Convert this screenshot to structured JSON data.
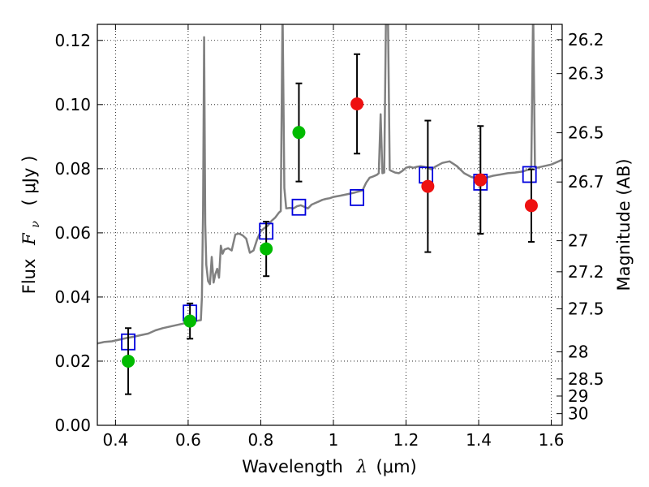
{
  "chart_data": {
    "type": "scatter",
    "xlabel": "Wavelength  λ (μm)",
    "xlabel_main": "Wavelength",
    "xlabel_symbol": "λ",
    "xlabel_unit": "(μm)",
    "ylabel_main": "Flux",
    "ylabel_symbol": "F",
    "ylabel_subscript": "ν",
    "ylabel_unit": "( μJy )",
    "y2label": "Magnitude (AB)",
    "xlim": [
      0.35,
      1.63
    ],
    "ylim": [
      0.0,
      0.125
    ],
    "grid": true,
    "x_ticks": [
      {
        "value": 0.4,
        "label": "0.4"
      },
      {
        "value": 0.6,
        "label": "0.6"
      },
      {
        "value": 0.8,
        "label": "0.8"
      },
      {
        "value": 1.0,
        "label": "1"
      },
      {
        "value": 1.2,
        "label": "1.2"
      },
      {
        "value": 1.4,
        "label": "1.4"
      },
      {
        "value": 1.6,
        "label": "1.6"
      }
    ],
    "y_ticks": [
      {
        "value": 0.0,
        "label": "0.00"
      },
      {
        "value": 0.02,
        "label": "0.02"
      },
      {
        "value": 0.04,
        "label": "0.04"
      },
      {
        "value": 0.06,
        "label": "0.06"
      },
      {
        "value": 0.08,
        "label": "0.08"
      },
      {
        "value": 0.1,
        "label": "0.10"
      },
      {
        "value": 0.12,
        "label": "0.12"
      }
    ],
    "mag_ticks": [
      {
        "value": 26.2,
        "label": "26.2"
      },
      {
        "value": 26.3,
        "label": "26.3"
      },
      {
        "value": 26.5,
        "label": "26.5"
      },
      {
        "value": 26.7,
        "label": "26.7"
      },
      {
        "value": 27.0,
        "label": "27"
      },
      {
        "value": 27.2,
        "label": "27.2"
      },
      {
        "value": 27.5,
        "label": "27.5"
      },
      {
        "value": 28.0,
        "label": "28"
      },
      {
        "value": 28.5,
        "label": "28.5"
      },
      {
        "value": 29.0,
        "label": "29"
      },
      {
        "value": 30.0,
        "label": "30"
      }
    ],
    "mag_zero_point": 23.9,
    "series": [
      {
        "name": "model-spectrum",
        "kind": "line",
        "color": "#808080",
        "points": [
          [
            0.35,
            0.0255
          ],
          [
            0.37,
            0.026
          ],
          [
            0.39,
            0.0262
          ],
          [
            0.41,
            0.0267
          ],
          [
            0.43,
            0.0272
          ],
          [
            0.45,
            0.0276
          ],
          [
            0.47,
            0.0281
          ],
          [
            0.49,
            0.0286
          ],
          [
            0.51,
            0.0296
          ],
          [
            0.53,
            0.0303
          ],
          [
            0.55,
            0.0308
          ],
          [
            0.57,
            0.0313
          ],
          [
            0.59,
            0.0318
          ],
          [
            0.61,
            0.0322
          ],
          [
            0.625,
            0.0326
          ],
          [
            0.635,
            0.0328
          ],
          [
            0.638,
            0.04
          ],
          [
            0.641,
            0.067
          ],
          [
            0.644,
            0.121
          ],
          [
            0.647,
            0.0628
          ],
          [
            0.65,
            0.05
          ],
          [
            0.655,
            0.045
          ],
          [
            0.66,
            0.044
          ],
          [
            0.665,
            0.0525
          ],
          [
            0.67,
            0.0445
          ],
          [
            0.675,
            0.0472
          ],
          [
            0.68,
            0.0488
          ],
          [
            0.685,
            0.046
          ],
          [
            0.69,
            0.056
          ],
          [
            0.695,
            0.0535
          ],
          [
            0.7,
            0.0548
          ],
          [
            0.71,
            0.0552
          ],
          [
            0.72,
            0.0545
          ],
          [
            0.73,
            0.0595
          ],
          [
            0.74,
            0.0598
          ],
          [
            0.75,
            0.0592
          ],
          [
            0.76,
            0.0582
          ],
          [
            0.77,
            0.0538
          ],
          [
            0.78,
            0.0545
          ],
          [
            0.79,
            0.058
          ],
          [
            0.8,
            0.0605
          ],
          [
            0.81,
            0.0615
          ],
          [
            0.82,
            0.0623
          ],
          [
            0.83,
            0.0638
          ],
          [
            0.84,
            0.0648
          ],
          [
            0.85,
            0.0663
          ],
          [
            0.855,
            0.0668
          ],
          [
            0.86,
            0.13
          ],
          [
            0.865,
            0.074
          ],
          [
            0.87,
            0.0676
          ],
          [
            0.88,
            0.0678
          ],
          [
            0.89,
            0.0676
          ],
          [
            0.9,
            0.0683
          ],
          [
            0.91,
            0.0686
          ],
          [
            0.92,
            0.0681
          ],
          [
            0.93,
            0.0676
          ],
          [
            0.94,
            0.0688
          ],
          [
            0.95,
            0.0693
          ],
          [
            0.96,
            0.0698
          ],
          [
            0.97,
            0.0703
          ],
          [
            0.98,
            0.0706
          ],
          [
            0.99,
            0.0708
          ],
          [
            1.0,
            0.0712
          ],
          [
            1.02,
            0.0716
          ],
          [
            1.04,
            0.0721
          ],
          [
            1.06,
            0.0726
          ],
          [
            1.08,
            0.0732
          ],
          [
            1.09,
            0.0756
          ],
          [
            1.1,
            0.0772
          ],
          [
            1.11,
            0.0776
          ],
          [
            1.12,
            0.0781
          ],
          [
            1.125,
            0.0786
          ],
          [
            1.13,
            0.097
          ],
          [
            1.135,
            0.0786
          ],
          [
            1.14,
            0.0788
          ],
          [
            1.145,
            0.13
          ],
          [
            1.15,
            0.13
          ],
          [
            1.155,
            0.0796
          ],
          [
            1.16,
            0.0793
          ],
          [
            1.17,
            0.0788
          ],
          [
            1.18,
            0.0786
          ],
          [
            1.19,
            0.0793
          ],
          [
            1.2,
            0.0803
          ],
          [
            1.21,
            0.0806
          ],
          [
            1.22,
            0.0803
          ],
          [
            1.23,
            0.0806
          ],
          [
            1.24,
            0.0808
          ],
          [
            1.25,
            0.0806
          ],
          [
            1.26,
            0.0803
          ],
          [
            1.27,
            0.0798
          ],
          [
            1.28,
            0.0806
          ],
          [
            1.3,
            0.0818
          ],
          [
            1.32,
            0.0823
          ],
          [
            1.34,
            0.0808
          ],
          [
            1.36,
            0.0786
          ],
          [
            1.38,
            0.0774
          ],
          [
            1.4,
            0.0769
          ],
          [
            1.42,
            0.0772
          ],
          [
            1.44,
            0.0778
          ],
          [
            1.46,
            0.0782
          ],
          [
            1.48,
            0.0786
          ],
          [
            1.5,
            0.0788
          ],
          [
            1.52,
            0.0791
          ],
          [
            1.54,
            0.0798
          ],
          [
            1.545,
            0.0806
          ],
          [
            1.55,
            0.13
          ],
          [
            1.555,
            0.0806
          ],
          [
            1.56,
            0.0803
          ],
          [
            1.58,
            0.0808
          ],
          [
            1.6,
            0.0813
          ],
          [
            1.62,
            0.0823
          ],
          [
            1.63,
            0.0828
          ]
        ]
      },
      {
        "name": "model-synthetic-photometry",
        "kind": "open-square",
        "color": "#0000dd",
        "points": [
          [
            0.435,
            0.026
          ],
          [
            0.605,
            0.035
          ],
          [
            0.815,
            0.0605
          ],
          [
            0.905,
            0.068
          ],
          [
            1.065,
            0.071
          ],
          [
            1.255,
            0.078
          ],
          [
            1.405,
            0.0758
          ],
          [
            1.54,
            0.0782
          ]
        ]
      },
      {
        "name": "observed-optical",
        "kind": "filled-circle",
        "color": "#00bb00",
        "points": [
          {
            "x": 0.435,
            "y": 0.02,
            "err_low": 0.0103,
            "err_high": 0.0103
          },
          {
            "x": 0.605,
            "y": 0.0325,
            "err_low": 0.0055,
            "err_high": 0.0055
          },
          {
            "x": 0.815,
            "y": 0.055,
            "err_low": 0.0085,
            "err_high": 0.0085
          },
          {
            "x": 0.905,
            "y": 0.0913,
            "err_low": 0.0153,
            "err_high": 0.0153
          }
        ]
      },
      {
        "name": "observed-infrared",
        "kind": "filled-circle",
        "color": "#ee1111",
        "points": [
          {
            "x": 1.065,
            "y": 0.1002,
            "err_low": 0.0155,
            "err_high": 0.0155
          },
          {
            "x": 1.26,
            "y": 0.0745,
            "err_low": 0.0205,
            "err_high": 0.0205
          },
          {
            "x": 1.405,
            "y": 0.0765,
            "err_low": 0.0168,
            "err_high": 0.0168
          },
          {
            "x": 1.545,
            "y": 0.0685,
            "err_low": 0.0113,
            "err_high": 0.0113
          }
        ]
      }
    ]
  }
}
